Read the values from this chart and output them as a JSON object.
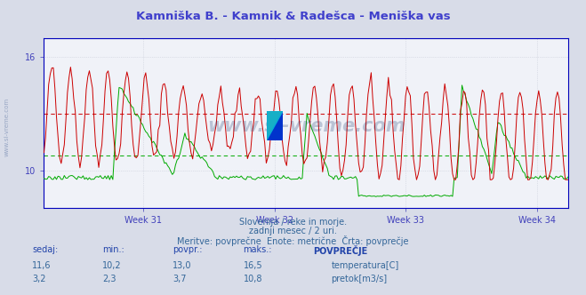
{
  "title": "Kamniška B. - Kamnik & Radešca - Meniška vas",
  "title_color": "#4040cc",
  "bg_color": "#d8dce8",
  "plot_bg_color": "#f0f2f8",
  "grid_color": "#c8ccd8",
  "axis_color": "#0000bb",
  "text_color": "#4040bb",
  "week_labels": [
    "Week 31",
    "Week 32",
    "Week 33",
    "Week 34"
  ],
  "ylim": [
    8,
    17
  ],
  "temp_avg": 13.0,
  "flow_avg_scaled": 11.42,
  "temp_color": "#cc0000",
  "flow_color": "#00aa00",
  "subtitle1": "Slovenija / reke in morje.",
  "subtitle2": "zadnji mesec / 2 uri.",
  "subtitle3": "Meritve: povprečne  Enote: metrične  Črta: povprečje",
  "table_headers": [
    "sedaj:",
    "min.:",
    "povpr.:",
    "maks.:",
    "POVPREČJE"
  ],
  "row1": [
    "11,6",
    "10,2",
    "13,0",
    "16,5"
  ],
  "row2": [
    "3,2",
    "2,3",
    "3,7",
    "10,8"
  ],
  "row1_label": "temperatura[C]",
  "row2_label": "pretok[m3/s]",
  "watermark": "www.si-vreme.com",
  "n_points": 336,
  "flow_scale_min": 8.0,
  "flow_scale_max": 17.0,
  "flow_data_min": 0.0,
  "flow_data_max": 12.0,
  "flow_avg_data": 3.7
}
